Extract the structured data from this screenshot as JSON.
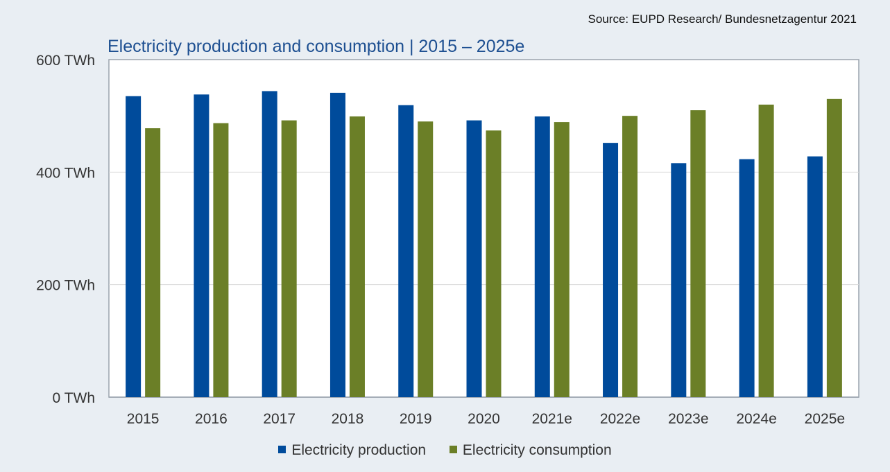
{
  "source": "Source: EUPD Research/ Bundesnetzagentur 2021",
  "chart_data": {
    "type": "bar",
    "title": "Electricity production and consumption | 2015 – 2025e",
    "categories": [
      "2015",
      "2016",
      "2017",
      "2018",
      "2019",
      "2020",
      "2021e",
      "2022e",
      "2023e",
      "2024e",
      "2025e"
    ],
    "series": [
      {
        "name": "Electricity production",
        "color": "#004b9b",
        "values": [
          535,
          538,
          544,
          541,
          519,
          492,
          499,
          452,
          416,
          423,
          428
        ]
      },
      {
        "name": "Electricity consumption",
        "color": "#6b7f27",
        "values": [
          478,
          487,
          492,
          499,
          490,
          474,
          489,
          500,
          510,
          520,
          530
        ]
      }
    ],
    "ylim": [
      0,
      600
    ],
    "yticks": [
      0,
      200,
      400,
      600
    ],
    "ytick_labels": [
      "0 TWh",
      "200 TWh",
      "400 TWh",
      "600 TWh"
    ],
    "xlabel": "",
    "ylabel": "",
    "grid": "horizontal",
    "legend": "bottom"
  }
}
